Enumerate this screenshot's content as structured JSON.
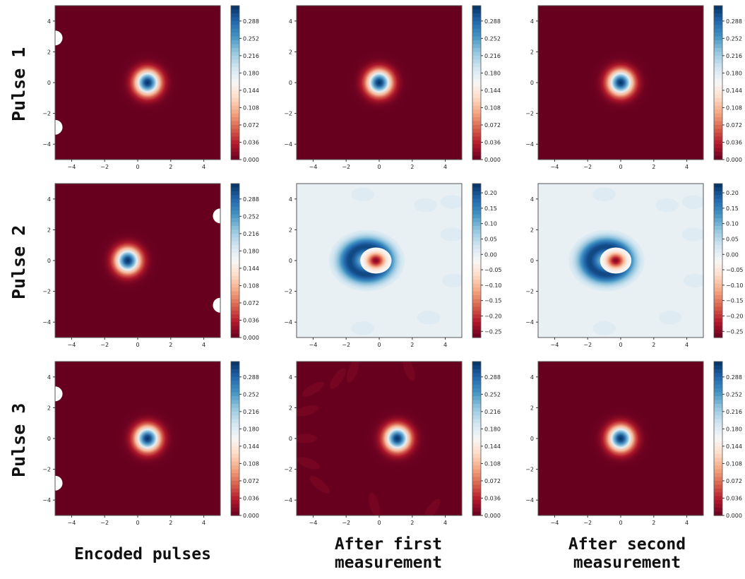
{
  "row_labels": [
    "Pulse 1",
    "Pulse 2",
    "Pulse 3"
  ],
  "column_labels": {
    "encoded": "Encoded pulses",
    "first_line1": "After first",
    "first_line2": "measurement",
    "second_line1": "After second",
    "second_line2": "measurement"
  },
  "colormap": "RdBu",
  "chart_data": [
    {
      "type": "heatmap",
      "title": "Pulse 1, Encoded pulses",
      "xlim": [
        -5,
        5
      ],
      "ylim": [
        -5,
        5
      ],
      "xticks": [
        "−4",
        "−2",
        "0",
        "2",
        "4"
      ],
      "yticks": [
        "4",
        "2",
        "0",
        "−2",
        "−4"
      ],
      "colorbar_ticks": [
        "0.288",
        "0.252",
        "0.216",
        "0.180",
        "0.144",
        "0.108",
        "0.072",
        "0.036",
        "0.000"
      ],
      "colorbar_range": [
        0,
        0.32
      ],
      "blob": {
        "cx": 0.6,
        "cy": 0.0,
        "peak": 0.32
      },
      "edge_artifacts": [
        {
          "x": -5,
          "y": 2.9
        },
        {
          "x": -5,
          "y": -2.9
        }
      ]
    },
    {
      "type": "heatmap",
      "title": "Pulse 1, After first measurement",
      "xlim": [
        -5,
        5
      ],
      "ylim": [
        -5,
        5
      ],
      "xticks": [
        "−4",
        "−2",
        "0",
        "2",
        "4"
      ],
      "yticks": [
        "4",
        "2",
        "0",
        "−2",
        "−4"
      ],
      "colorbar_ticks": [
        "0.288",
        "0.252",
        "0.216",
        "0.180",
        "0.144",
        "0.108",
        "0.072",
        "0.036",
        "0.000"
      ],
      "colorbar_range": [
        0,
        0.32
      ],
      "blob": {
        "cx": 0.0,
        "cy": 0.0,
        "peak": 0.32
      }
    },
    {
      "type": "heatmap",
      "title": "Pulse 1, After second measurement",
      "xlim": [
        -5,
        5
      ],
      "ylim": [
        -5,
        5
      ],
      "xticks": [
        "−4",
        "−2",
        "0",
        "2",
        "4"
      ],
      "yticks": [
        "4",
        "2",
        "0",
        "−2",
        "−4"
      ],
      "colorbar_ticks": [
        "0.288",
        "0.252",
        "0.216",
        "0.180",
        "0.144",
        "0.108",
        "0.072",
        "0.036",
        "0.000"
      ],
      "colorbar_range": [
        0,
        0.32
      ],
      "blob": {
        "cx": 0.0,
        "cy": 0.0,
        "peak": 0.32
      }
    },
    {
      "type": "heatmap",
      "title": "Pulse 2, Encoded pulses",
      "xlim": [
        -5,
        5
      ],
      "ylim": [
        -5,
        5
      ],
      "xticks": [
        "−4",
        "−2",
        "0",
        "2",
        "4"
      ],
      "yticks": [
        "4",
        "2",
        "0",
        "−2",
        "−4"
      ],
      "colorbar_ticks": [
        "0.288",
        "0.252",
        "0.216",
        "0.180",
        "0.144",
        "0.108",
        "0.072",
        "0.036",
        "0.000"
      ],
      "colorbar_range": [
        0,
        0.32
      ],
      "blob": {
        "cx": -0.6,
        "cy": 0.0,
        "peak": 0.32
      },
      "edge_artifacts": [
        {
          "x": 5,
          "y": 2.9
        },
        {
          "x": 5,
          "y": -2.9
        }
      ]
    },
    {
      "type": "heatmap",
      "title": "Pulse 2, After first measurement",
      "xlim": [
        -5,
        5
      ],
      "ylim": [
        -5,
        5
      ],
      "xticks": [
        "−4",
        "−2",
        "0",
        "2",
        "4"
      ],
      "yticks": [
        "4",
        "2",
        "0",
        "−2",
        "−4"
      ],
      "colorbar_ticks": [
        "0.20",
        "0.15",
        "0.10",
        "0.05",
        "0.00",
        "−0.05",
        "−0.10",
        "−0.15",
        "−0.20",
        "−0.25"
      ],
      "colorbar_range": [
        -0.27,
        0.23
      ],
      "cat": {
        "cx": -0.2,
        "cy": 0.0,
        "neg_peak": -0.25,
        "pos_peak": 0.21
      }
    },
    {
      "type": "heatmap",
      "title": "Pulse 2, After second measurement",
      "xlim": [
        -5,
        5
      ],
      "ylim": [
        -5,
        5
      ],
      "xticks": [
        "−4",
        "−2",
        "0",
        "2",
        "4"
      ],
      "yticks": [
        "4",
        "2",
        "0",
        "−2",
        "−4"
      ],
      "colorbar_ticks": [
        "0.20",
        "0.15",
        "0.10",
        "0.05",
        "0.00",
        "−0.05",
        "−0.10",
        "−0.15",
        "−0.20",
        "−0.25"
      ],
      "colorbar_range": [
        -0.27,
        0.23
      ],
      "cat": {
        "cx": -0.3,
        "cy": 0.0,
        "neg_peak": -0.25,
        "pos_peak": 0.21
      }
    },
    {
      "type": "heatmap",
      "title": "Pulse 3, Encoded pulses",
      "xlim": [
        -5,
        5
      ],
      "ylim": [
        -5,
        5
      ],
      "xticks": [
        "−4",
        "−2",
        "0",
        "2",
        "4"
      ],
      "yticks": [
        "4",
        "2",
        "0",
        "−2",
        "−4"
      ],
      "colorbar_ticks": [
        "0.288",
        "0.252",
        "0.216",
        "0.180",
        "0.144",
        "0.108",
        "0.072",
        "0.036",
        "0.000"
      ],
      "colorbar_range": [
        0,
        0.32
      ],
      "blob": {
        "cx": 0.6,
        "cy": 0.0,
        "peak": 0.32
      },
      "edge_artifacts": [
        {
          "x": -5,
          "y": 2.9
        },
        {
          "x": -5,
          "y": -2.9
        }
      ]
    },
    {
      "type": "heatmap",
      "title": "Pulse 3, After first measurement",
      "xlim": [
        -5,
        5
      ],
      "ylim": [
        -5,
        5
      ],
      "xticks": [
        "−4",
        "−2",
        "0",
        "2",
        "4"
      ],
      "yticks": [
        "4",
        "2",
        "0",
        "−2",
        "−4"
      ],
      "colorbar_ticks": [
        "0.288",
        "0.252",
        "0.216",
        "0.180",
        "0.144",
        "0.108",
        "0.072",
        "0.036",
        "0.000"
      ],
      "colorbar_range": [
        0,
        0.32
      ],
      "blob": {
        "cx": 1.1,
        "cy": 0.0,
        "peak": 0.32
      },
      "fringes": true
    },
    {
      "type": "heatmap",
      "title": "Pulse 3, After second measurement",
      "xlim": [
        -5,
        5
      ],
      "ylim": [
        -5,
        5
      ],
      "xticks": [
        "−4",
        "−2",
        "0",
        "2",
        "4"
      ],
      "yticks": [
        "4",
        "2",
        "0",
        "−2",
        "−4"
      ],
      "colorbar_ticks": [
        "0.288",
        "0.252",
        "0.216",
        "0.180",
        "0.144",
        "0.108",
        "0.072",
        "0.036",
        "0.000"
      ],
      "colorbar_range": [
        0,
        0.32
      ],
      "blob": {
        "cx": 0.0,
        "cy": 0.0,
        "peak": 0.32
      }
    }
  ]
}
